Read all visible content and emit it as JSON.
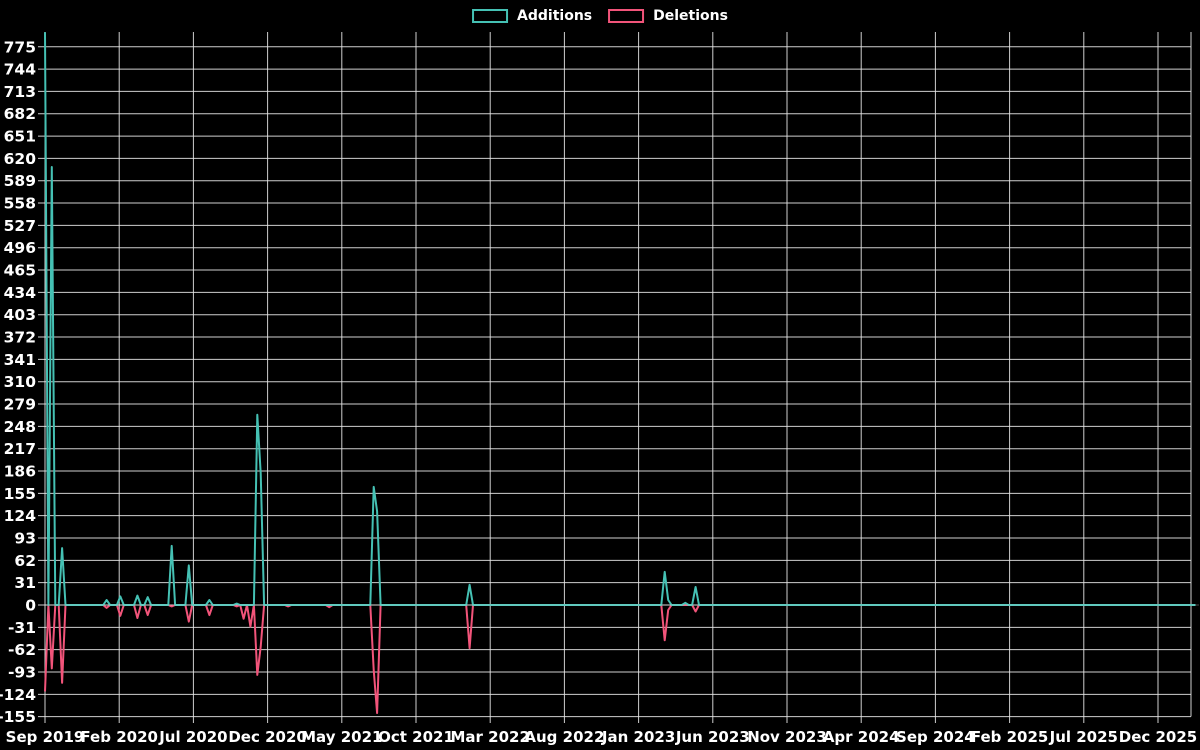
{
  "legend": {
    "additions_label": "Additions",
    "deletions_label": "Deletions"
  },
  "colors": {
    "background": "#000000",
    "additions": "#45c1b4",
    "deletions": "#f2547a",
    "grid": "#e6e6e6",
    "text": "#ffffff"
  },
  "chart_data": {
    "type": "line",
    "title": "",
    "xlabel": "",
    "ylabel": "",
    "x_unit": "weeks since Sep 2019",
    "x_tick_labels": [
      "Sep 2019",
      "Feb 2020",
      "Jul 2020",
      "Dec 2020",
      "May 2021",
      "Oct 2021",
      "Mar 2022",
      "Aug 2022",
      "Jan 2023",
      "Jun 2023",
      "Nov 2023",
      "Apr 2024",
      "Sep 2024",
      "Feb 2025",
      "Jul 2025",
      "Dec 2025"
    ],
    "x_tick_interval_months": 5,
    "y_tick_labels": [
      775,
      744,
      713,
      682,
      651,
      620,
      589,
      558,
      527,
      496,
      465,
      434,
      403,
      372,
      341,
      310,
      279,
      248,
      217,
      186,
      155,
      124,
      93,
      62,
      31,
      0,
      -31,
      -62,
      -93,
      -124,
      -155
    ],
    "y_tick_step": 31,
    "ylim": [
      -155,
      775
    ],
    "weeks_total": 337,
    "grid": true,
    "legend_position": "top-center",
    "series": [
      {
        "name": "Additions",
        "color_key": "additions",
        "points": [
          [
            0,
            795
          ],
          [
            2,
            608
          ],
          [
            5,
            79
          ],
          [
            18,
            7
          ],
          [
            22,
            12
          ],
          [
            27,
            13
          ],
          [
            30,
            11
          ],
          [
            37,
            82
          ],
          [
            42,
            55
          ],
          [
            48,
            7
          ],
          [
            56,
            2
          ],
          [
            62,
            264
          ],
          [
            63,
            183
          ],
          [
            96,
            164
          ],
          [
            97,
            130
          ],
          [
            124,
            28
          ],
          [
            181,
            46
          ],
          [
            182,
            7
          ],
          [
            187,
            3
          ],
          [
            190,
            25
          ]
        ]
      },
      {
        "name": "Deletions",
        "color_key": "deletions",
        "points": [
          [
            0,
            -120
          ],
          [
            2,
            -88
          ],
          [
            5,
            -108
          ],
          [
            18,
            -4
          ],
          [
            22,
            -15
          ],
          [
            27,
            -18
          ],
          [
            30,
            -14
          ],
          [
            37,
            -2
          ],
          [
            42,
            -23
          ],
          [
            48,
            -14
          ],
          [
            56,
            -2
          ],
          [
            58,
            -19
          ],
          [
            60,
            -30
          ],
          [
            62,
            -97
          ],
          [
            63,
            -58
          ],
          [
            71,
            -2
          ],
          [
            83,
            -3
          ],
          [
            96,
            -90
          ],
          [
            97,
            -150
          ],
          [
            124,
            -60
          ],
          [
            181,
            -49
          ],
          [
            182,
            -7
          ],
          [
            190,
            -9
          ]
        ]
      }
    ]
  }
}
